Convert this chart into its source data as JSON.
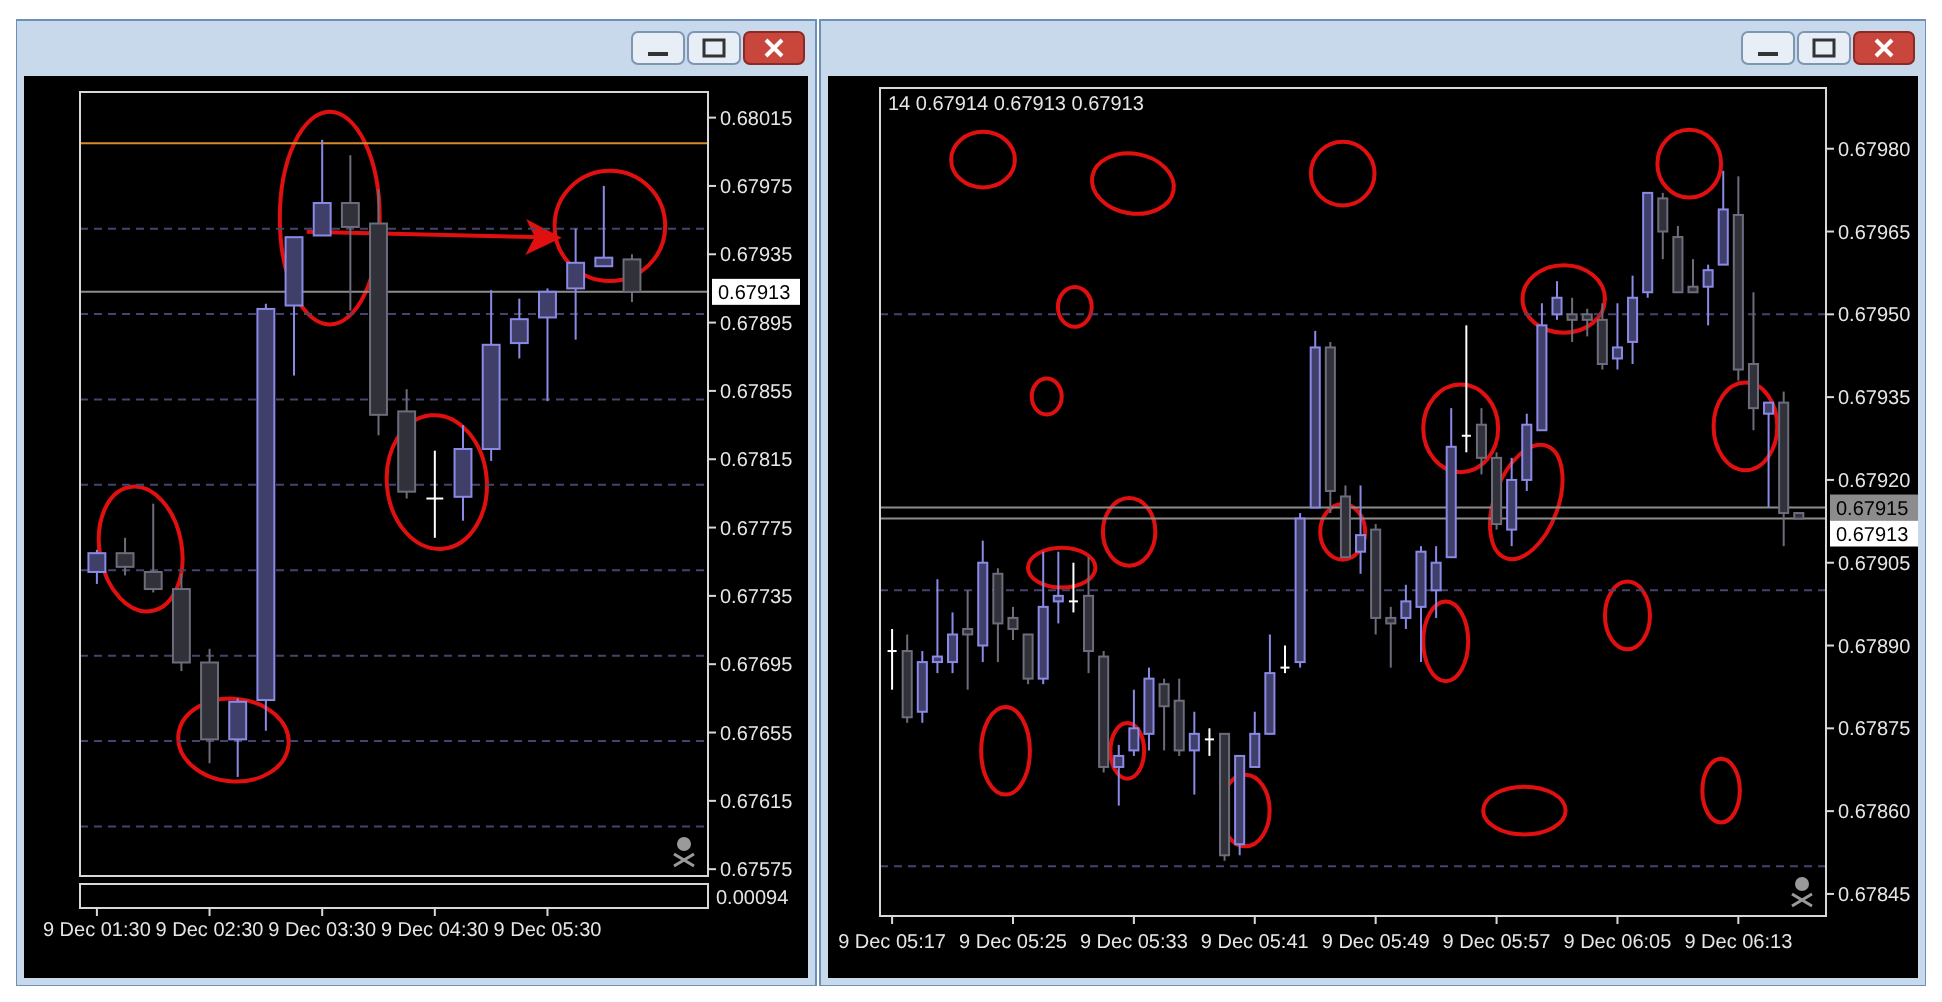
{
  "chart_data": [
    {
      "type": "candlestick",
      "categories": [
        "9 Dec 01:30",
        null,
        null,
        null,
        "9 Dec 02:30",
        null,
        null,
        null,
        "9 Dec 03:30",
        null,
        null,
        null,
        "9 Dec 04:30",
        null,
        null,
        null,
        "9 Dec 05:30",
        null,
        null,
        null
      ],
      "ohlc": [
        [
          0.67749,
          0.67762,
          0.67742,
          0.6776
        ],
        [
          0.6776,
          0.67769,
          0.67747,
          0.67752
        ],
        [
          0.67749,
          0.67789,
          0.67737,
          0.67739
        ],
        [
          0.67739,
          0.67748,
          0.67691,
          0.67696
        ],
        [
          0.67696,
          0.67704,
          0.67637,
          0.67651
        ],
        [
          0.67651,
          0.67675,
          0.67629,
          0.67673
        ],
        [
          0.67674,
          0.67906,
          0.67656,
          0.67903
        ],
        [
          0.67905,
          0.67945,
          0.67864,
          0.67945
        ],
        [
          0.67946,
          0.68002,
          0.67946,
          0.67965
        ],
        [
          0.67965,
          0.67993,
          0.67902,
          0.67951
        ],
        [
          0.67953,
          0.67973,
          0.67829,
          0.67841
        ],
        [
          0.67843,
          0.67856,
          0.67792,
          0.67796
        ],
        [
          0.67792,
          0.6782,
          0.67769,
          0.67792
        ],
        [
          0.67793,
          0.67835,
          0.67779,
          0.67821
        ],
        [
          0.67821,
          0.67914,
          0.67814,
          0.67882
        ],
        [
          0.67883,
          0.67909,
          0.67874,
          0.67897
        ],
        [
          0.67898,
          0.67915,
          0.67849,
          0.67913
        ],
        [
          0.67915,
          0.6795,
          0.67885,
          0.6793
        ],
        [
          0.67928,
          0.67975,
          0.67928,
          0.67933
        ],
        [
          0.67932,
          0.67935,
          0.67907,
          0.67913
        ]
      ],
      "colors": [
        "#8a8ae6",
        "#6c6c7c",
        "#6c6c7c",
        "#6c6c7c",
        "#6c6c7c",
        "#8a8ae6",
        "#8a8ae6",
        "#8a8ae6",
        "#8a8ae6",
        "#6c6c7c",
        "#6c6c7c",
        "#6c6c7c",
        "#ffffff",
        "#8a8ae6",
        "#8a8ae6",
        "#8a8ae6",
        "#8a8ae6",
        "#8a8ae6",
        "#8a8ae6",
        "#6c6c7c"
      ],
      "ylim": [
        0.67571,
        0.6803
      ],
      "yticks": [
        {
          "value": 0.68015,
          "label": "0.68015"
        },
        {
          "value": 0.67975,
          "label": "0.67975"
        },
        {
          "value": 0.67935,
          "label": "0.67935"
        },
        {
          "value": 0.67895,
          "label": "0.67895"
        },
        {
          "value": 0.67855,
          "label": "0.67855"
        },
        {
          "value": 0.67815,
          "label": "0.67815"
        },
        {
          "value": 0.67775,
          "label": "0.67775"
        },
        {
          "value": 0.67735,
          "label": "0.67735"
        },
        {
          "value": 0.67695,
          "label": "0.67695"
        },
        {
          "value": 0.67655,
          "label": "0.67655"
        },
        {
          "value": 0.67615,
          "label": "0.67615"
        },
        {
          "value": 0.67575,
          "label": "0.67575"
        }
      ],
      "ref_lines": [
        {
          "axis": "y",
          "value": 0.6795,
          "color": "#44446e",
          "line_style": "dashed"
        },
        {
          "axis": "y",
          "value": 0.679,
          "color": "#44446e",
          "line_style": "dashed"
        },
        {
          "axis": "y",
          "value": 0.6785,
          "color": "#44446e",
          "line_style": "dashed"
        },
        {
          "axis": "y",
          "value": 0.678,
          "color": "#44446e",
          "line_style": "dashed"
        },
        {
          "axis": "y",
          "value": 0.6775,
          "color": "#44446e",
          "line_style": "dashed"
        },
        {
          "axis": "y",
          "value": 0.677,
          "color": "#44446e",
          "line_style": "dashed"
        },
        {
          "axis": "y",
          "value": 0.6765,
          "color": "#44446e",
          "line_style": "dashed"
        },
        {
          "axis": "y",
          "value": 0.676,
          "color": "#44446e",
          "line_style": "dashed"
        },
        {
          "axis": "y",
          "value": 0.68,
          "color": "#d98a2b",
          "line_style": "solid"
        },
        {
          "axis": "y",
          "value": 0.67913,
          "label": "0.67913",
          "color": "#8c8c8c",
          "line_style": "solid"
        }
      ],
      "annotations": [
        "0.00094"
      ]
    },
    {
      "type": "candlestick",
      "categories": [
        "9 Dec 05:17",
        null,
        null,
        null,
        null,
        null,
        null,
        null,
        "9 Dec 05:25",
        null,
        null,
        null,
        null,
        null,
        null,
        null,
        "9 Dec 05:33",
        null,
        null,
        null,
        null,
        null,
        null,
        null,
        "9 Dec 05:41",
        null,
        null,
        null,
        null,
        null,
        null,
        null,
        "9 Dec 05:49",
        null,
        null,
        null,
        null,
        null,
        null,
        null,
        "9 Dec 05:57",
        null,
        null,
        null,
        null,
        null,
        null,
        null,
        "9 Dec 06:05",
        null,
        null,
        null,
        null,
        null,
        null,
        null,
        "9 Dec 06:13",
        null,
        null,
        null,
        null
      ],
      "ohlc": [
        [
          0.67889,
          0.67893,
          0.67882,
          0.67889
        ],
        [
          0.67889,
          0.67892,
          0.67876,
          0.67877
        ],
        [
          0.67878,
          0.67889,
          0.67876,
          0.67887
        ],
        [
          0.67887,
          0.67902,
          0.67885,
          0.67888
        ],
        [
          0.67887,
          0.67896,
          0.67885,
          0.67892
        ],
        [
          0.67893,
          0.679,
          0.67882,
          0.67892
        ],
        [
          0.6789,
          0.67909,
          0.67887,
          0.67905
        ],
        [
          0.67903,
          0.67904,
          0.67887,
          0.67894
        ],
        [
          0.67895,
          0.67897,
          0.67891,
          0.67893
        ],
        [
          0.67892,
          0.67892,
          0.67883,
          0.67884
        ],
        [
          0.67884,
          0.67907,
          0.67883,
          0.67897
        ],
        [
          0.67898,
          0.67907,
          0.67894,
          0.67899
        ],
        [
          0.67898,
          0.67905,
          0.67896,
          0.67898
        ],
        [
          0.67899,
          0.67906,
          0.67885,
          0.67889
        ],
        [
          0.67888,
          0.67889,
          0.67867,
          0.67868
        ],
        [
          0.67868,
          0.67872,
          0.67861,
          0.6787
        ],
        [
          0.67871,
          0.67882,
          0.6787,
          0.67875
        ],
        [
          0.67874,
          0.67886,
          0.67871,
          0.67884
        ],
        [
          0.67883,
          0.67884,
          0.67871,
          0.67879
        ],
        [
          0.6788,
          0.67884,
          0.6787,
          0.67871
        ],
        [
          0.67871,
          0.67878,
          0.67863,
          0.67874
        ],
        [
          0.67873,
          0.67875,
          0.6787,
          0.67873
        ],
        [
          0.67874,
          0.67874,
          0.67851,
          0.67852
        ],
        [
          0.67854,
          0.6787,
          0.67852,
          0.6787
        ],
        [
          0.67868,
          0.67878,
          0.67868,
          0.67874
        ],
        [
          0.67874,
          0.67892,
          0.67874,
          0.67885
        ],
        [
          0.67886,
          0.6789,
          0.67885,
          0.67886
        ],
        [
          0.67887,
          0.67914,
          0.67886,
          0.67913
        ],
        [
          0.67915,
          0.67947,
          0.67915,
          0.67944
        ],
        [
          0.67944,
          0.67945,
          0.67914,
          0.67918
        ],
        [
          0.67917,
          0.67919,
          0.67906,
          0.67906
        ],
        [
          0.67907,
          0.67919,
          0.67903,
          0.6791
        ],
        [
          0.67911,
          0.67912,
          0.67892,
          0.67895
        ],
        [
          0.67895,
          0.67897,
          0.67886,
          0.67894
        ],
        [
          0.67895,
          0.67901,
          0.67893,
          0.67898
        ],
        [
          0.67897,
          0.67908,
          0.67887,
          0.67907
        ],
        [
          0.679,
          0.67908,
          0.67895,
          0.67905
        ],
        [
          0.67906,
          0.67933,
          0.67906,
          0.67926
        ],
        [
          0.67928,
          0.67948,
          0.67925,
          0.67928
        ],
        [
          0.6793,
          0.67933,
          0.67921,
          0.67924
        ],
        [
          0.67924,
          0.67925,
          0.67911,
          0.67912
        ],
        [
          0.67911,
          0.67924,
          0.67908,
          0.6792
        ],
        [
          0.6792,
          0.67932,
          0.67918,
          0.6793
        ],
        [
          0.67929,
          0.67952,
          0.67929,
          0.67948
        ],
        [
          0.6795,
          0.67956,
          0.67949,
          0.67953
        ],
        [
          0.6795,
          0.67953,
          0.67945,
          0.67949
        ],
        [
          0.6795,
          0.67951,
          0.67946,
          0.67949
        ],
        [
          0.67949,
          0.67952,
          0.6794,
          0.67941
        ],
        [
          0.67942,
          0.67952,
          0.6794,
          0.67944
        ],
        [
          0.67945,
          0.67957,
          0.67941,
          0.67953
        ],
        [
          0.67954,
          0.67972,
          0.67953,
          0.67972
        ],
        [
          0.67971,
          0.67972,
          0.6796,
          0.67965
        ],
        [
          0.67964,
          0.67966,
          0.67954,
          0.67954
        ],
        [
          0.67955,
          0.6796,
          0.67954,
          0.67954
        ],
        [
          0.67955,
          0.67959,
          0.67948,
          0.67958
        ],
        [
          0.67959,
          0.67976,
          0.67959,
          0.67969
        ],
        [
          0.67968,
          0.67975,
          0.67938,
          0.6794
        ],
        [
          0.67941,
          0.67954,
          0.67929,
          0.67933
        ],
        [
          0.67932,
          0.67934,
          0.67915,
          0.67934
        ],
        [
          0.67934,
          0.67936,
          0.67908,
          0.67914
        ],
        [
          0.67914,
          0.67914,
          0.67913,
          0.67913
        ]
      ],
      "colors": [
        "#ffffff",
        "#6c6c7c",
        "#8a8ae6",
        "#8a8ae6",
        "#8a8ae6",
        "#6c6c7c",
        "#8a8ae6",
        "#6c6c7c",
        "#6c6c7c",
        "#6c6c7c",
        "#8a8ae6",
        "#8a8ae6",
        "#ffffff",
        "#6c6c7c",
        "#6c6c7c",
        "#8a8ae6",
        "#8a8ae6",
        "#8a8ae6",
        "#6c6c7c",
        "#6c6c7c",
        "#8a8ae6",
        "#ffffff",
        "#6c6c7c",
        "#8a8ae6",
        "#8a8ae6",
        "#8a8ae6",
        "#ffffff",
        "#8a8ae6",
        "#8a8ae6",
        "#6c6c7c",
        "#6c6c7c",
        "#8a8ae6",
        "#6c6c7c",
        "#6c6c7c",
        "#8a8ae6",
        "#8a8ae6",
        "#8a8ae6",
        "#8a8ae6",
        "#ffffff",
        "#6c6c7c",
        "#6c6c7c",
        "#8a8ae6",
        "#8a8ae6",
        "#8a8ae6",
        "#8a8ae6",
        "#6c6c7c",
        "#6c6c7c",
        "#6c6c7c",
        "#8a8ae6",
        "#8a8ae6",
        "#8a8ae6",
        "#6c6c7c",
        "#6c6c7c",
        "#6c6c7c",
        "#8a8ae6",
        "#8a8ae6",
        "#6c6c7c",
        "#6c6c7c",
        "#8a8ae6",
        "#6c6c7c",
        "#6c6c7c"
      ],
      "ylim": [
        0.67841,
        0.67991
      ],
      "yticks": [
        {
          "value": 0.6798,
          "label": "0.67980"
        },
        {
          "value": 0.67965,
          "label": "0.67965"
        },
        {
          "value": 0.6795,
          "label": "0.67950"
        },
        {
          "value": 0.67935,
          "label": "0.67935"
        },
        {
          "value": 0.6792,
          "label": "0.67920"
        },
        {
          "value": 0.67905,
          "label": "0.67905"
        },
        {
          "value": 0.6789,
          "label": "0.67890"
        },
        {
          "value": 0.67875,
          "label": "0.67875"
        },
        {
          "value": 0.6786,
          "label": "0.67860"
        },
        {
          "value": 0.67845,
          "label": "0.67845"
        }
      ],
      "ref_lines": [
        {
          "axis": "y",
          "value": 0.6795,
          "color": "#44446e",
          "line_style": "dashed"
        },
        {
          "axis": "y",
          "value": 0.679,
          "color": "#44446e",
          "line_style": "dashed"
        },
        {
          "axis": "y",
          "value": 0.6785,
          "color": "#44446e",
          "line_style": "dashed"
        },
        {
          "axis": "y",
          "value": 0.67915,
          "label": "0.67915",
          "color": "#8c8c8c",
          "line_style": "solid"
        },
        {
          "axis": "y",
          "value": 0.67913,
          "label": "0.67913",
          "color": "#8c8c8c",
          "line_style": "solid"
        }
      ],
      "annotations": [
        "14 0.67914 0.67913 0.67913"
      ]
    }
  ]
}
